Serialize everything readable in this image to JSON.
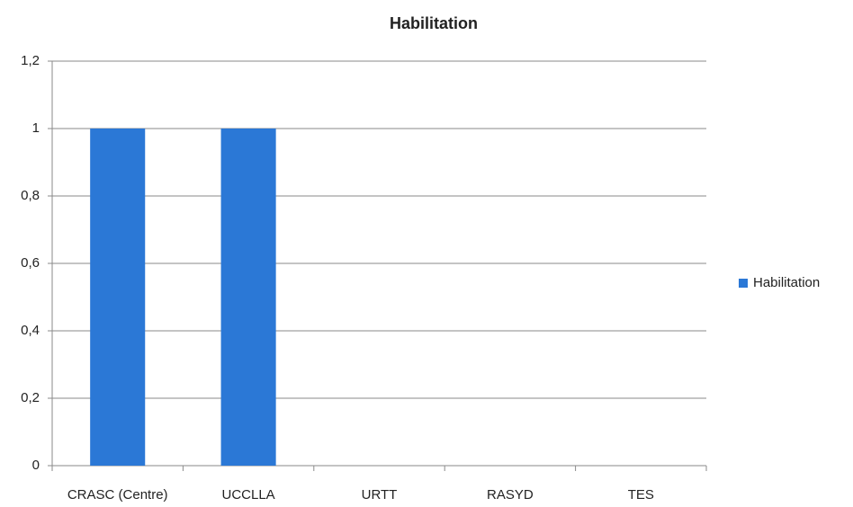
{
  "chart_data": {
    "type": "bar",
    "title": "Habilitation",
    "categories": [
      "CRASC (Centre)",
      "UCCLLA",
      "URTT",
      "RASYD",
      "TES"
    ],
    "series": [
      {
        "name": "Habilitation",
        "color": "#2b78d6",
        "values": [
          1,
          1,
          0,
          0,
          0
        ]
      }
    ],
    "ylim": [
      0,
      1.2
    ],
    "yticks": [
      0,
      {
        "value": 0.2,
        "label": "0,2"
      },
      {
        "value": 0.4,
        "label": "0,4"
      },
      {
        "value": 0.6,
        "label": "0,6"
      },
      {
        "value": 0.8,
        "label": "0,8"
      },
      1,
      {
        "value": 1.2,
        "label": "1,2"
      }
    ],
    "grid": true,
    "legend": "right"
  }
}
